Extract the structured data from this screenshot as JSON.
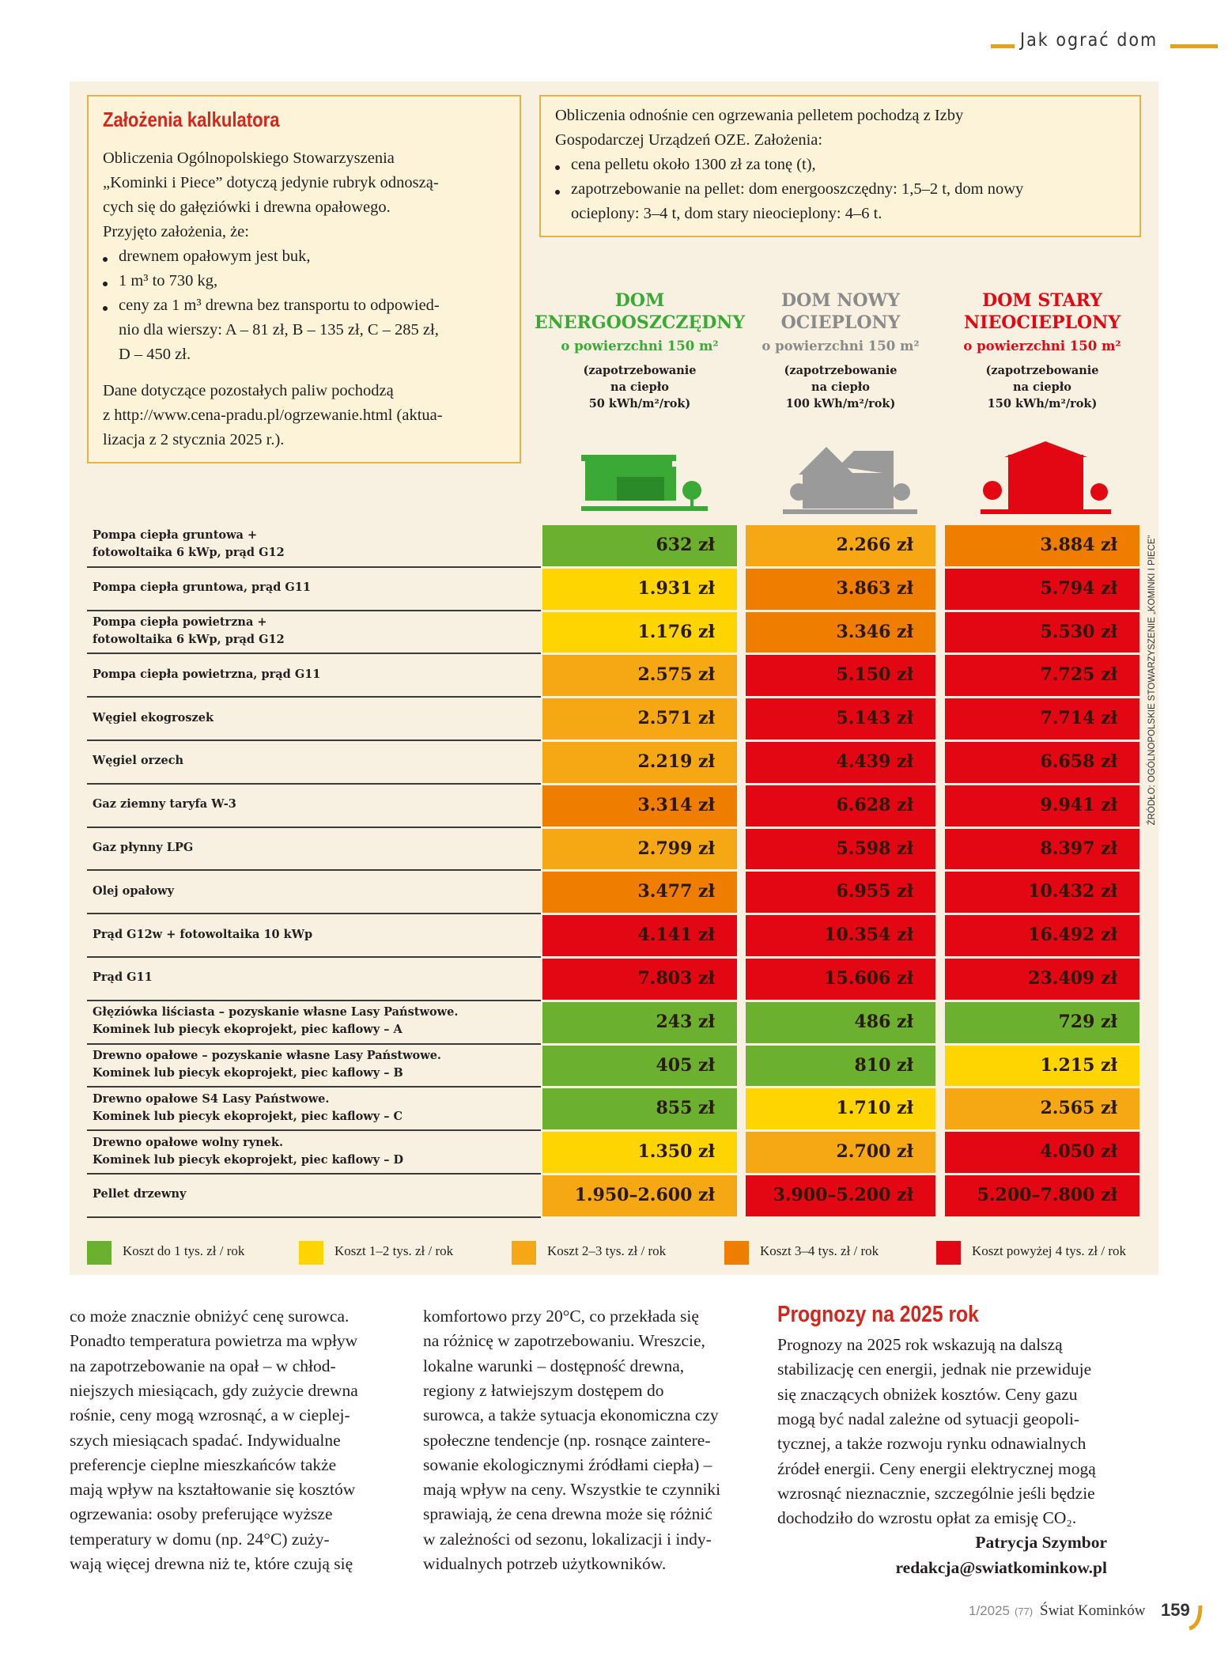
{
  "header": {
    "section": "Jak ograć dom"
  },
  "assumptions": {
    "title": "Założenia kalkulatora",
    "intro": [
      "Obliczenia Ogólnopolskiego Stowarzyszenia",
      "„Kominki i Piece” dotyczą jedynie rubryk odnoszą-",
      "cych się do gałęziówki i drewna opałowego.",
      "Przyjęto założenia, że:"
    ],
    "bullets": [
      [
        "drewnem opałowym jest buk,"
      ],
      [
        "1 m³ to 730 kg,"
      ],
      [
        "ceny za 1 m³ drewna bez transportu to odpowied-",
        "nio dla wierszy: A – 81 zł, B – 135 zł, C – 285 zł,",
        "D – 450 zł."
      ]
    ],
    "outro": [
      "Dane dotyczące pozostałych paliw pochodzą",
      "z http://www.cena-pradu.pl/ogrzewanie.html (aktua-",
      "lizacja z 2 stycznia 2025 r.)."
    ]
  },
  "pellet_note": {
    "intro": [
      "Obliczenia odnośnie cen ogrzewania pelletem pochodzą z Izby",
      "Gospodarczej Urządzeń OZE. Założenia:"
    ],
    "bullets": [
      [
        "cena pelletu około 1300 zł za tonę (t),"
      ],
      [
        "zapotrzebowanie na pellet: dom energooszczędny: 1,5–2 t, dom nowy",
        "ocieplony: 3–4 t, dom stary nieocieplony: 4–6 t."
      ]
    ]
  },
  "table": {
    "columns": [
      {
        "title": [
          "DOM",
          "ENERGOOSZCZĘDNY"
        ],
        "subtitle": "o powierzchni 150 m²",
        "note": [
          "(zapotrzebowanie",
          "na ciepło",
          "50 kWh/m²/rok)"
        ],
        "color": "#3aa935"
      },
      {
        "title": [
          "DOM NOWY",
          "OCIEPLONY"
        ],
        "subtitle": "o powierzchni 150 m²",
        "note": [
          "(zapotrzebowanie",
          "na ciepło",
          "100 kWh/m²/rok)"
        ],
        "color": "#8a8a8a"
      },
      {
        "title": [
          "DOM STARY",
          "NIEOCIEPLONY"
        ],
        "subtitle": "o powierzchni 150 m²",
        "note": [
          "(zapotrzebowanie",
          "na ciepło",
          "150 kWh/m²/rok)"
        ],
        "color": "#e30613"
      }
    ],
    "rows": [
      {
        "label": [
          "Pompa ciepła gruntowa +",
          "fotowoltaika 6 kWp, prąd G12"
        ],
        "cells": [
          {
            "text": "632 zł",
            "color": "#6cb02f"
          },
          {
            "text": "2.266 zł",
            "color": "#f6a814"
          },
          {
            "text": "3.884 zł",
            "color": "#ee7d00"
          }
        ]
      },
      {
        "label": [
          "Pompa ciepła gruntowa, prąd G11"
        ],
        "cells": [
          {
            "text": "1.931 zł",
            "color": "#ffd500"
          },
          {
            "text": "3.863 zł",
            "color": "#ee7d00"
          },
          {
            "text": "5.794 zł",
            "color": "#e30613"
          }
        ]
      },
      {
        "label": [
          "Pompa ciepła powietrzna +",
          "fotowoltaika 6 kWp, prąd G12"
        ],
        "cells": [
          {
            "text": "1.176 zł",
            "color": "#ffd500"
          },
          {
            "text": "3.346 zł",
            "color": "#ee7d00"
          },
          {
            "text": "5.530 zł",
            "color": "#e30613"
          }
        ]
      },
      {
        "label": [
          "Pompa ciepła powietrzna, prąd G11"
        ],
        "cells": [
          {
            "text": "2.575 zł",
            "color": "#f6a814"
          },
          {
            "text": "5.150 zł",
            "color": "#e30613"
          },
          {
            "text": "7.725 zł",
            "color": "#e30613"
          }
        ]
      },
      {
        "label": [
          "Węgiel ekogroszek"
        ],
        "cells": [
          {
            "text": "2.571 zł",
            "color": "#f6a814"
          },
          {
            "text": "5.143 zł",
            "color": "#e30613"
          },
          {
            "text": "7.714 zł",
            "color": "#e30613"
          }
        ]
      },
      {
        "label": [
          "Węgiel orzech"
        ],
        "cells": [
          {
            "text": "2.219 zł",
            "color": "#f6a814"
          },
          {
            "text": "4.439 zł",
            "color": "#e30613"
          },
          {
            "text": "6.658 zł",
            "color": "#e30613"
          }
        ]
      },
      {
        "label": [
          "Gaz ziemny taryfa W-3"
        ],
        "cells": [
          {
            "text": "3.314 zł",
            "color": "#ee7d00"
          },
          {
            "text": "6.628 zł",
            "color": "#e30613"
          },
          {
            "text": "9.941 zł",
            "color": "#e30613"
          }
        ]
      },
      {
        "label": [
          "Gaz płynny LPG"
        ],
        "cells": [
          {
            "text": "2.799 zł",
            "color": "#f6a814"
          },
          {
            "text": "5.598 zł",
            "color": "#e30613"
          },
          {
            "text": "8.397 zł",
            "color": "#e30613"
          }
        ]
      },
      {
        "label": [
          "Olej opałowy"
        ],
        "cells": [
          {
            "text": "3.477 zł",
            "color": "#ee7d00"
          },
          {
            "text": "6.955 zł",
            "color": "#e30613"
          },
          {
            "text": "10.432 zł",
            "color": "#e30613"
          }
        ]
      },
      {
        "label": [
          "Prąd G12w + fotowoltaika 10 kWp"
        ],
        "cells": [
          {
            "text": "4.141 zł",
            "color": "#e30613"
          },
          {
            "text": "10.354 zł",
            "color": "#e30613"
          },
          {
            "text": "16.492 zł",
            "color": "#e30613"
          }
        ]
      },
      {
        "label": [
          "Prąd G11"
        ],
        "cells": [
          {
            "text": "7.803 zł",
            "color": "#e30613"
          },
          {
            "text": "15.606 zł",
            "color": "#e30613"
          },
          {
            "text": "23.409 zł",
            "color": "#e30613"
          }
        ]
      },
      {
        "label": [
          "Głęziówka liściasta – pozyskanie własne Lasy Państwowe.",
          "Kominek lub piecyk ekoprojekt, piec kaflowy – A"
        ],
        "cells": [
          {
            "text": "243 zł",
            "color": "#6cb02f"
          },
          {
            "text": "486 zł",
            "color": "#6cb02f"
          },
          {
            "text": "729 zł",
            "color": "#6cb02f"
          }
        ]
      },
      {
        "label": [
          "Drewno opałowe – pozyskanie własne Lasy Państwowe.",
          "Kominek lub piecyk ekoprojekt, piec kaflowy – B"
        ],
        "cells": [
          {
            "text": "405 zł",
            "color": "#6cb02f"
          },
          {
            "text": "810 zł",
            "color": "#6cb02f"
          },
          {
            "text": "1.215 zł",
            "color": "#ffd500"
          }
        ]
      },
      {
        "label": [
          "Drewno opałowe S4 Lasy Państwowe.",
          "Kominek lub piecyk ekoprojekt, piec kaflowy – C"
        ],
        "cells": [
          {
            "text": "855 zł",
            "color": "#6cb02f"
          },
          {
            "text": "1.710 zł",
            "color": "#ffd500"
          },
          {
            "text": "2.565 zł",
            "color": "#f6a814"
          }
        ]
      },
      {
        "label": [
          "Drewno opałowe wolny rynek.",
          "Kominek lub piecyk ekoprojekt, piec kaflowy – D"
        ],
        "cells": [
          {
            "text": "1.350 zł",
            "color": "#ffd500"
          },
          {
            "text": "2.700 zł",
            "color": "#f6a814"
          },
          {
            "text": "4.050 zł",
            "color": "#e30613"
          }
        ]
      },
      {
        "label": [
          "Pellet drzewny"
        ],
        "cells": [
          {
            "text": "1.950–2.600 zł",
            "color": "#f6a814"
          },
          {
            "text": "3.900–5.200 zł",
            "color": "#e30613"
          },
          {
            "text": "5.200–7.800 zł",
            "color": "#e30613"
          }
        ]
      }
    ],
    "source": "ŹRÓDŁO: OGÓLNOPOLSKIE STOWARZYSZENIE „KOMINKI I PIECE”",
    "legend": [
      {
        "label": "Koszt do 1 tys. zł / rok",
        "color": "#6cb02f"
      },
      {
        "label": "Koszt 1–2 tys. zł / rok",
        "color": "#ffd500"
      },
      {
        "label": "Koszt 2–3 tys. zł / rok",
        "color": "#f6a814"
      },
      {
        "label": "Koszt 3–4 tys. zł / rok",
        "color": "#ee7d00"
      },
      {
        "label": "Koszt powyżej 4 tys. zł / rok",
        "color": "#e30613"
      }
    ]
  },
  "article": {
    "col1": [
      "co może znacznie obniżyć cenę surowca.",
      "Ponadto temperatura powietrza ma wpływ",
      "na zapotrzebowanie na opał – w chłod-",
      "niejszych miesiącach, gdy zużycie drewna",
      "rośnie, ceny mogą wzrosnąć, a w cieplej-",
      "szych miesiącach spadać. Indywidualne",
      "preferencje cieplne mieszkańców także",
      "mają wpływ na kształtowanie się kosztów",
      "ogrzewania: osoby preferujące wyższe",
      "temperatury w domu (np. 24°C) zuży-",
      "wają więcej drewna niż te, które czują się"
    ],
    "col2": [
      "komfortowo przy 20°C, co przekłada się",
      "na różnicę w zapotrzebowaniu. Wreszcie,",
      "lokalne warunki – dostępność drewna,",
      "regiony z łatwiejszym dostępem do",
      "surowca, a także sytuacja ekonomiczna czy",
      "społeczne tendencje (np. rosnące zaintere-",
      "sowanie ekologicznymi źródłami ciepła) –",
      "mają wpływ na ceny. Wszystkie te czynniki",
      "sprawiają, że cena drewna może się różnić",
      "w zależności od sezonu, lokalizacji i indy-",
      "widualnych potrzeb użytkowników."
    ],
    "col3_title": "Prognozy na 2025 rok",
    "col3": [
      "Prognozy na 2025 rok wskazują na dalszą",
      "stabilizację cen energii, jednak nie przewiduje",
      "się znaczących obniżek kosztów. Ceny gazu",
      "mogą być nadal zależne od sytuacji geopoli-",
      "tycznej, a także rozwoju rynku odnawialnych",
      "źródeł energii. Ceny energii elektrycznej mogą",
      "wzrosnąć nieznacznie, szczególnie jeśli będzie",
      "dochodziło do wzrostu opłat za emisję CO₂."
    ],
    "author": "Patrycja Szymbor",
    "email": "redakcja@swiatkominkow.pl"
  },
  "footer": {
    "issue": "1/2025",
    "number": "(77)",
    "magazine": "Świat Kominków",
    "page": "159"
  }
}
